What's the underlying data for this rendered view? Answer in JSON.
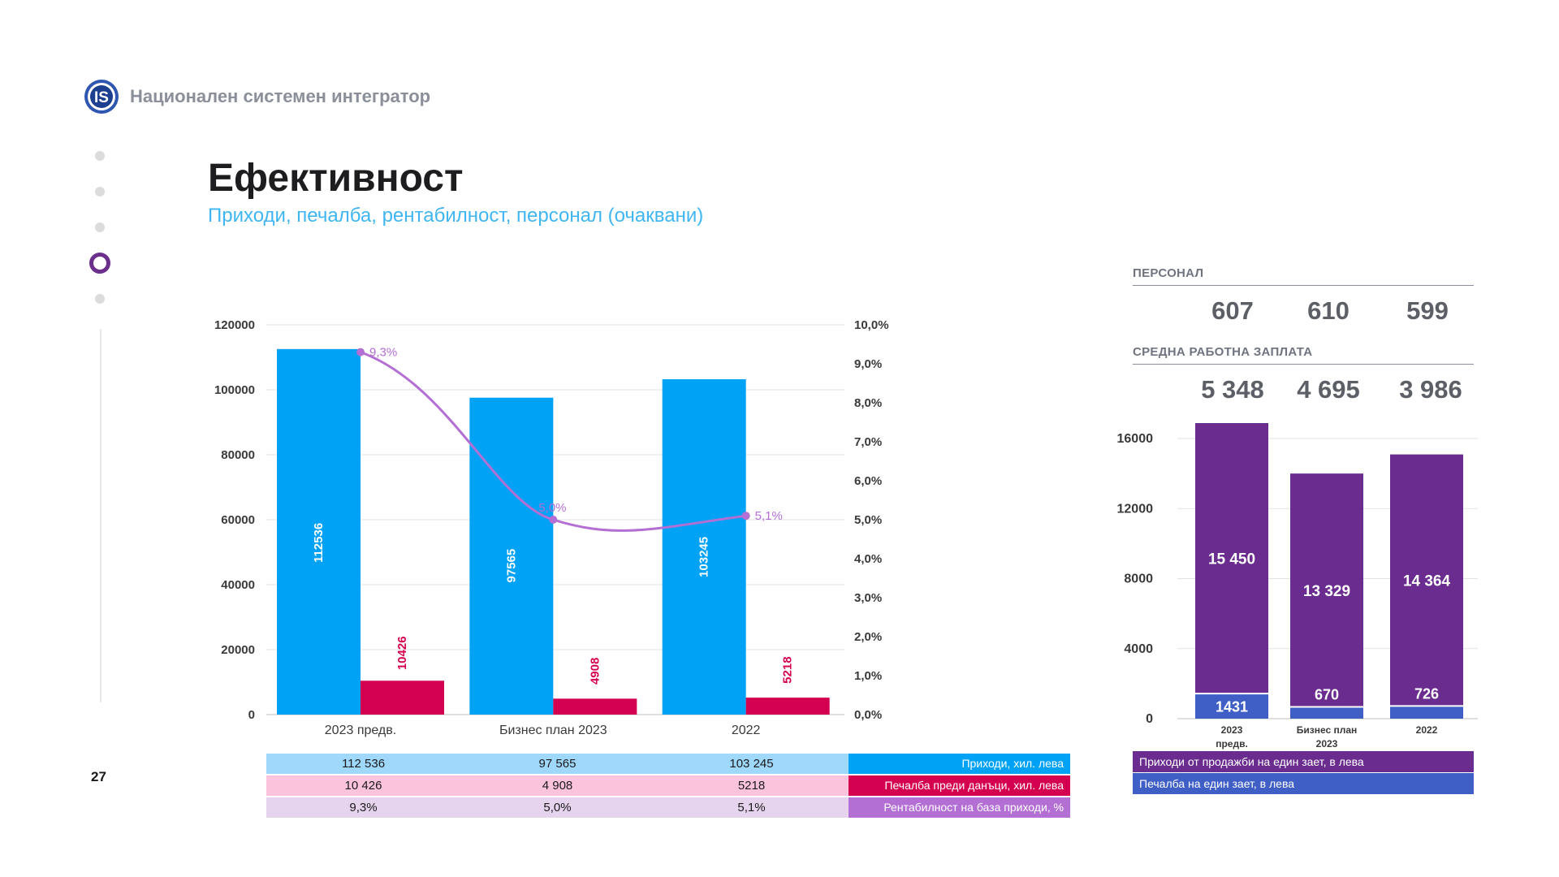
{
  "header": {
    "logo_text": "IS",
    "brand_name": "Национален системен интегратор"
  },
  "page_number": "27",
  "title": "Ефективност",
  "subtitle": "Приходи, печалба, рентабилност, персонал (очаквани)",
  "colors": {
    "revenue": "#00a2f5",
    "profit": "#d4004f",
    "rentability": "#b36fd4",
    "sales_per_employee": "#6a2c8e",
    "profit_per_employee": "#3f5fc6",
    "nav_active": "#6b2f8c"
  },
  "table": {
    "revenue": {
      "values": [
        "112 536",
        "97 565",
        "103 245"
      ],
      "label": "Приходи, хил. лева"
    },
    "profit": {
      "values": [
        "10 426",
        "4 908",
        "5218"
      ],
      "label": "Печалба преди данъци, хил. лева"
    },
    "rentability": {
      "values": [
        "9,3%",
        "5,0%",
        "5,1%"
      ],
      "label": "Рентабилност на база приходи, %"
    }
  },
  "personnel": {
    "label": "ПЕРСОНАЛ",
    "values": [
      "607",
      "610",
      "599"
    ]
  },
  "salary": {
    "label": "СРЕДНА РАБОТНА ЗАПЛАТА",
    "values": [
      "5 348",
      "4 695",
      "3 986"
    ]
  },
  "right_legend": {
    "sales_per_employee": "Приходи от продажби на един зает, в лева",
    "profit_per_employee": "Печалба на един зает,  в лева"
  },
  "chart_data": [
    {
      "type": "bar",
      "categories": [
        "2023 предв.",
        "Бизнес план 2023",
        "2022"
      ],
      "series": [
        {
          "name": "Приходи, хил. лева",
          "values": [
            112536,
            97565,
            103245
          ],
          "labels": [
            "112536",
            "97565",
            "103245"
          ]
        },
        {
          "name": "Печалба преди данъци, хил. лева",
          "values": [
            10426,
            4908,
            5218
          ],
          "labels": [
            "10426",
            "4908",
            "5218"
          ]
        },
        {
          "name": "Рентабилност на база приходи, %",
          "type": "line",
          "axis": "right",
          "values": [
            9.3,
            5.0,
            5.1
          ],
          "labels": [
            "9,3%",
            "5,0%",
            "5,1%"
          ]
        }
      ],
      "ylim": [
        0,
        120000
      ],
      "yticks": [
        "0",
        "20000",
        "40000",
        "60000",
        "80000",
        "100000",
        "120000"
      ],
      "y2lim": [
        0,
        10
      ],
      "y2ticks": [
        "0,0%",
        "1,0%",
        "2,0%",
        "3,0%",
        "4,0%",
        "5,0%",
        "6,0%",
        "7,0%",
        "8,0%",
        "9,0%",
        "10,0%"
      ],
      "grid": true
    },
    {
      "type": "bar",
      "stacked": true,
      "categories": [
        "2023 предв.",
        "Бизнес план 2023",
        "2022"
      ],
      "category_lines": [
        [
          "2023",
          "предв."
        ],
        [
          "Бизнес план",
          "2023"
        ],
        [
          "2022"
        ]
      ],
      "series": [
        {
          "name": "Печалба на един зает,  в лева",
          "values": [
            1431,
            670,
            726
          ],
          "labels": [
            "1431",
            "670",
            "726"
          ]
        },
        {
          "name": "Приходи от продажби на един зает, в лева",
          "values": [
            15450,
            13329,
            14364
          ],
          "labels": [
            "15 450",
            "13 329",
            "14 364"
          ]
        }
      ],
      "ylim": [
        0,
        16000
      ],
      "yticks": [
        "0",
        "4000",
        "8000",
        "12000",
        "16000"
      ],
      "grid": true
    }
  ]
}
